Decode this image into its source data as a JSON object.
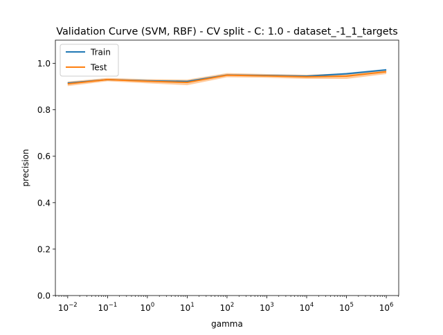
{
  "chart_data": {
    "type": "line",
    "title": "Validation Curve (SVM, RBF) - CV split - C: 1.0 - dataset_-1_1_targets",
    "xlabel": "gamma",
    "ylabel": "precision",
    "xscale": "log",
    "xlim": [
      0.0049,
      2050000
    ],
    "ylim": [
      0.0,
      1.1
    ],
    "x": [
      0.01,
      0.1,
      1,
      10,
      100,
      1000,
      10000,
      100000,
      1000000
    ],
    "x_tick_labels": [
      {
        "value": 0.01,
        "base": "10",
        "exp": "−2"
      },
      {
        "value": 0.1,
        "base": "10",
        "exp": "−1"
      },
      {
        "value": 1,
        "base": "10",
        "exp": "0"
      },
      {
        "value": 10,
        "base": "10",
        "exp": "1"
      },
      {
        "value": 100,
        "base": "10",
        "exp": "2"
      },
      {
        "value": 1000,
        "base": "10",
        "exp": "3"
      },
      {
        "value": 10000,
        "base": "10",
        "exp": "4"
      },
      {
        "value": 100000,
        "base": "10",
        "exp": "5"
      },
      {
        "value": 1000000,
        "base": "10",
        "exp": "6"
      }
    ],
    "y_ticks": [
      0.0,
      0.2,
      0.4,
      0.6,
      0.8,
      1.0
    ],
    "y_tick_labels": [
      "0.0",
      "0.2",
      "0.4",
      "0.6",
      "0.8",
      "1.0"
    ],
    "grid": false,
    "legend_position": "top-left",
    "series": [
      {
        "name": "Train",
        "color": "#1f77b4",
        "values": [
          0.915,
          0.93,
          0.925,
          0.922,
          0.95,
          0.948,
          0.945,
          0.955,
          0.972
        ],
        "band_low": [
          0.911,
          0.927,
          0.922,
          0.918,
          0.947,
          0.945,
          0.942,
          0.951,
          0.968
        ],
        "band_high": [
          0.919,
          0.933,
          0.928,
          0.926,
          0.953,
          0.951,
          0.948,
          0.959,
          0.976
        ]
      },
      {
        "name": "Test",
        "color": "#ff7f0e",
        "values": [
          0.912,
          0.93,
          0.923,
          0.918,
          0.949,
          0.946,
          0.942,
          0.945,
          0.964
        ],
        "band_low": [
          0.902,
          0.923,
          0.914,
          0.906,
          0.94,
          0.938,
          0.933,
          0.933,
          0.954
        ],
        "band_high": [
          0.922,
          0.937,
          0.932,
          0.93,
          0.958,
          0.954,
          0.951,
          0.957,
          0.974
        ]
      }
    ]
  }
}
